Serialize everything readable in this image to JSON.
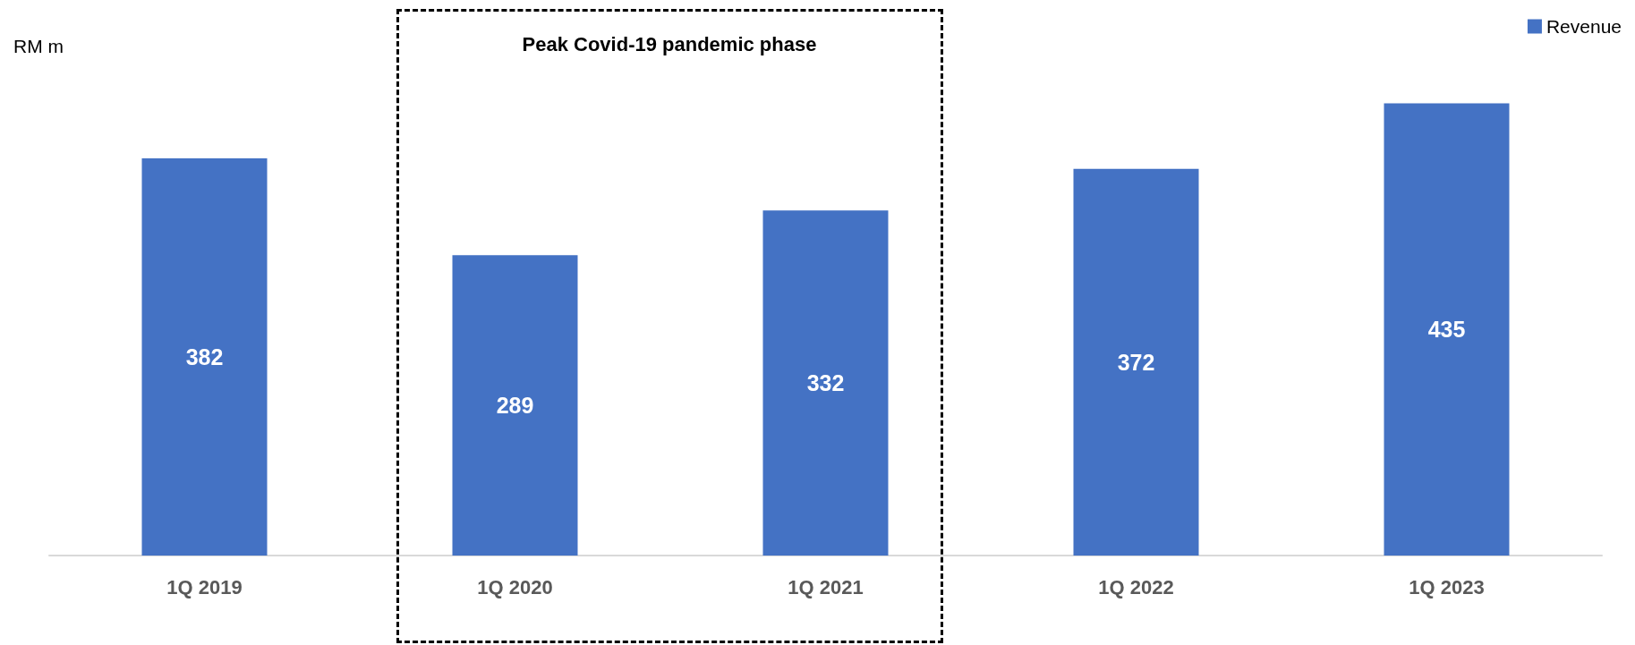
{
  "chart_data": {
    "type": "bar",
    "ylabel": "RM m",
    "categories": [
      "1Q 2019",
      "1Q 2020",
      "1Q 2021",
      "1Q 2022",
      "1Q 2023"
    ],
    "series": [
      {
        "name": "Revenue",
        "color": "#4472c4",
        "values": [
          382,
          289,
          332,
          372,
          435
        ]
      }
    ],
    "data_labels": true,
    "legend": "top right",
    "annotations": [
      "Peak Covid-19 pandemic phase"
    ]
  }
}
